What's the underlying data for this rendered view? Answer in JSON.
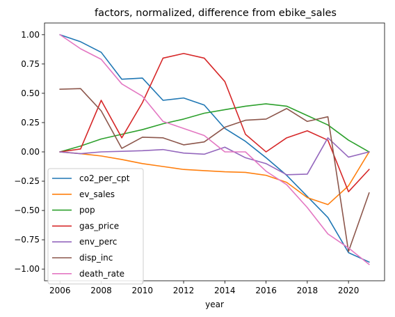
{
  "chart_data": {
    "type": "line",
    "title": "factors, normalized, difference from ebike_sales",
    "xlabel": "year",
    "ylabel": "",
    "xlim": [
      2005.25,
      2021.75
    ],
    "ylim": [
      -1.1,
      1.1
    ],
    "xticks": [
      2006,
      2008,
      2010,
      2012,
      2014,
      2016,
      2018,
      2020
    ],
    "yticks": [
      1.0,
      0.75,
      0.5,
      0.25,
      0.0,
      -0.25,
      -0.5,
      -0.75,
      -1.0
    ],
    "ytick_labels": [
      "1.00",
      "0.75",
      "0.50",
      "0.25",
      "0.00",
      "−0.25",
      "−0.50",
      "−0.75",
      "−1.00"
    ],
    "grid": false,
    "legend_position": "lower-left",
    "x": [
      2006,
      2007,
      2008,
      2009,
      2010,
      2011,
      2012,
      2013,
      2014,
      2015,
      2016,
      2017,
      2018,
      2019,
      2020,
      2021
    ],
    "series": [
      {
        "name": "co2_per_cpt",
        "color": "#1f77b4",
        "values": [
          1.0,
          0.94,
          0.85,
          0.62,
          0.63,
          0.44,
          0.46,
          0.4,
          0.2,
          0.09,
          -0.05,
          -0.2,
          -0.38,
          -0.56,
          -0.86,
          -0.94
        ]
      },
      {
        "name": "ev_sales",
        "color": "#ff7f0e",
        "values": [
          0.0,
          -0.015,
          -0.035,
          -0.065,
          -0.1,
          -0.125,
          -0.15,
          -0.16,
          -0.17,
          -0.175,
          -0.2,
          -0.26,
          -0.39,
          -0.45,
          -0.29,
          0.0
        ]
      },
      {
        "name": "pop",
        "color": "#2ca02c",
        "values": [
          0.0,
          0.05,
          0.11,
          0.15,
          0.19,
          0.24,
          0.28,
          0.33,
          0.36,
          0.39,
          0.41,
          0.39,
          0.31,
          0.23,
          0.1,
          0.0
        ]
      },
      {
        "name": "gas_price",
        "color": "#d62728",
        "values": [
          0.0,
          0.025,
          0.44,
          0.12,
          0.42,
          0.8,
          0.84,
          0.8,
          0.6,
          0.15,
          0.0,
          0.12,
          0.18,
          0.1,
          -0.34,
          -0.15
        ]
      },
      {
        "name": "env_perc",
        "color": "#9467bd",
        "values": [
          0.0,
          -0.015,
          0.0,
          0.005,
          0.01,
          0.02,
          -0.01,
          -0.02,
          0.04,
          -0.05,
          -0.1,
          -0.195,
          -0.19,
          0.12,
          -0.045,
          0.0
        ]
      },
      {
        "name": "disp_inc",
        "color": "#8c564b",
        "values": [
          0.535,
          0.54,
          0.35,
          0.03,
          0.125,
          0.12,
          0.06,
          0.085,
          0.21,
          0.27,
          0.28,
          0.37,
          0.26,
          0.3,
          -0.85,
          -0.35
        ]
      },
      {
        "name": "death_rate",
        "color": "#e377c2",
        "values": [
          1.0,
          0.88,
          0.79,
          0.58,
          0.475,
          0.26,
          0.2,
          0.14,
          0.0,
          0.0,
          -0.165,
          -0.28,
          -0.475,
          -0.7,
          -0.82,
          -0.96
        ]
      }
    ]
  }
}
